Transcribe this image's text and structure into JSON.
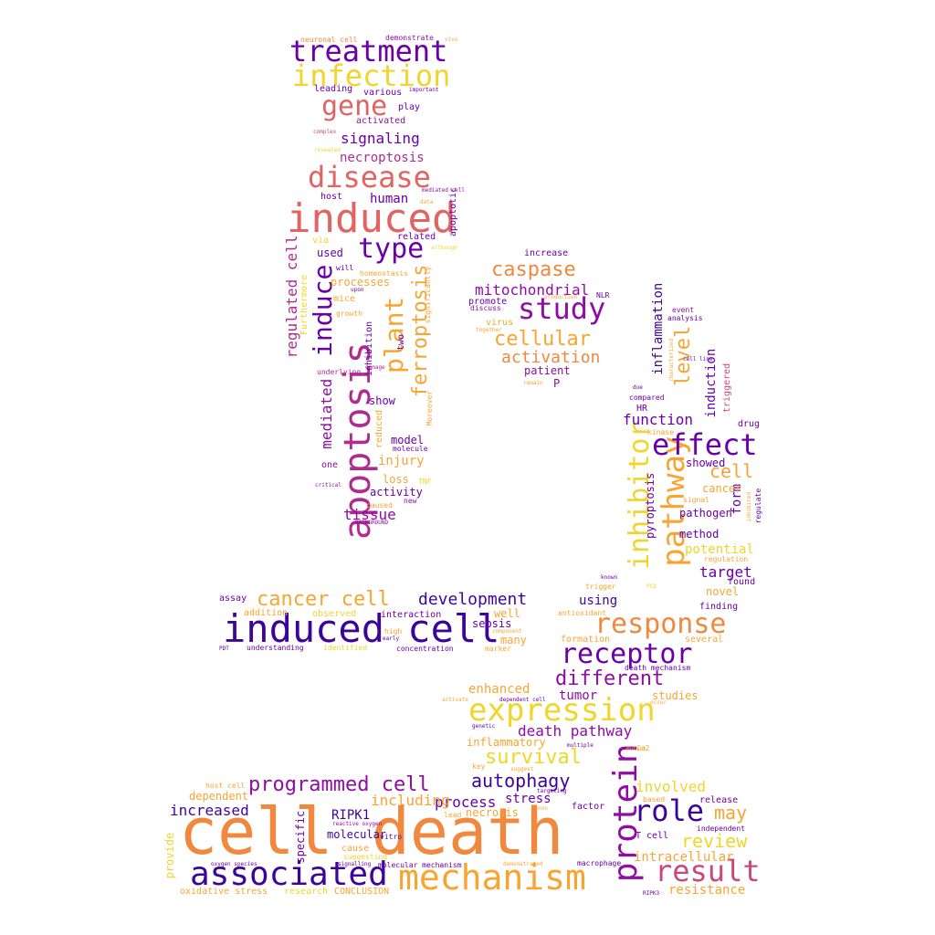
{
  "palette": {
    "indigo": "#3d049b",
    "violet": "#6a00a8",
    "purple": "#8f0da4",
    "magenta": "#b12a90",
    "rose": "#cc4778",
    "coral": "#e16462",
    "orange": "#f0883e",
    "amber": "#f9a431",
    "yellow": "#f0d52a"
  },
  "words": [
    {
      "text": "cell death",
      "color": "orange"
    },
    {
      "text": "induced cell",
      "color": "indigo"
    },
    {
      "text": "induced",
      "color": "coral"
    },
    {
      "text": "apoptosis",
      "color": "magenta"
    },
    {
      "text": "mechanism",
      "color": "amber"
    },
    {
      "text": "associated",
      "color": "indigo"
    },
    {
      "text": "protein",
      "color": "purple"
    },
    {
      "text": "pathway",
      "color": "amber"
    },
    {
      "text": "expression",
      "color": "yellow"
    },
    {
      "text": "response",
      "color": "orange"
    },
    {
      "text": "result",
      "color": "rose"
    },
    {
      "text": "receptor",
      "color": "violet"
    },
    {
      "text": "inhibitor",
      "color": "yellow"
    },
    {
      "text": "effect",
      "color": "violet"
    },
    {
      "text": "role",
      "color": "indigo"
    },
    {
      "text": "treatment",
      "color": "violet"
    },
    {
      "text": "infection",
      "color": "yellow"
    },
    {
      "text": "disease",
      "color": "coral"
    },
    {
      "text": "gene",
      "color": "coral"
    },
    {
      "text": "type",
      "color": "violet"
    },
    {
      "text": "study",
      "color": "purple"
    },
    {
      "text": "induce",
      "color": "violet"
    },
    {
      "text": "plant",
      "color": "amber"
    },
    {
      "text": "programmed cell",
      "color": "purple"
    },
    {
      "text": "cancer cell",
      "color": "amber"
    },
    {
      "text": "different",
      "color": "purple"
    },
    {
      "text": "ferroptosis",
      "color": "amber"
    },
    {
      "text": "level",
      "color": "amber"
    },
    {
      "text": "caspase",
      "color": "orange"
    },
    {
      "text": "cellular",
      "color": "amber"
    },
    {
      "text": "autophagy",
      "color": "indigo"
    },
    {
      "text": "survival",
      "color": "yellow"
    },
    {
      "text": "development",
      "color": "indigo"
    },
    {
      "text": "review",
      "color": "yellow"
    },
    {
      "text": "may",
      "color": "amber"
    },
    {
      "text": "cell",
      "color": "amber"
    },
    {
      "text": "activation",
      "color": "orange"
    },
    {
      "text": "signaling",
      "color": "violet"
    },
    {
      "text": "mitochondrial",
      "color": "purple"
    },
    {
      "text": "increased",
      "color": "indigo"
    },
    {
      "text": "death pathway",
      "color": "purple"
    },
    {
      "text": "enhanced",
      "color": "amber"
    },
    {
      "text": "involved",
      "color": "yellow"
    },
    {
      "text": "function",
      "color": "violet"
    },
    {
      "text": "intracellular",
      "color": "amber"
    },
    {
      "text": "resistance",
      "color": "amber"
    },
    {
      "text": "regulated cell",
      "color": "magenta"
    },
    {
      "text": "mediated",
      "color": "purple"
    },
    {
      "text": "necroptosis",
      "color": "magenta"
    },
    {
      "text": "tissue",
      "color": "purple"
    },
    {
      "text": "injury",
      "color": "amber"
    },
    {
      "text": "human",
      "color": "violet"
    },
    {
      "text": "target",
      "color": "violet"
    },
    {
      "text": "potential",
      "color": "yellow"
    },
    {
      "text": "process",
      "color": "violet"
    },
    {
      "text": "including",
      "color": "amber"
    },
    {
      "text": "stress",
      "color": "violet"
    },
    {
      "text": "inflammation",
      "color": "indigo"
    },
    {
      "text": "induction",
      "color": "violet"
    },
    {
      "text": "tumor",
      "color": "purple"
    },
    {
      "text": "form",
      "color": "violet"
    },
    {
      "text": "using",
      "color": "indigo"
    },
    {
      "text": "pyroptosis",
      "color": "violet"
    },
    {
      "text": "RIPK1",
      "color": "indigo"
    },
    {
      "text": "molecular",
      "color": "indigo"
    },
    {
      "text": "necrosis",
      "color": "amber"
    },
    {
      "text": "specific",
      "color": "violet"
    },
    {
      "text": "provide",
      "color": "yellow"
    },
    {
      "text": "dependent",
      "color": "amber"
    },
    {
      "text": "inflammatory",
      "color": "amber"
    },
    {
      "text": "studies",
      "color": "amber"
    },
    {
      "text": "sepsis",
      "color": "violet"
    },
    {
      "text": "well",
      "color": "amber"
    },
    {
      "text": "many",
      "color": "amber"
    },
    {
      "text": "novel",
      "color": "amber"
    },
    {
      "text": "method",
      "color": "violet"
    },
    {
      "text": "showed",
      "color": "violet"
    },
    {
      "text": "cancer",
      "color": "amber"
    },
    {
      "text": "pathogen",
      "color": "violet"
    },
    {
      "text": "patient",
      "color": "purple"
    },
    {
      "text": "P",
      "color": "purple"
    },
    {
      "text": "increase",
      "color": "violet"
    },
    {
      "text": "promote",
      "color": "violet"
    },
    {
      "text": "virus",
      "color": "amber"
    },
    {
      "text": "discuss",
      "color": "purple"
    },
    {
      "text": "NLR",
      "color": "violet"
    },
    {
      "text": "model",
      "color": "violet"
    },
    {
      "text": "loss",
      "color": "amber"
    },
    {
      "text": "activity",
      "color": "violet"
    },
    {
      "text": "show",
      "color": "violet"
    },
    {
      "text": "one",
      "color": "purple"
    },
    {
      "text": "processes",
      "color": "amber"
    },
    {
      "text": "used",
      "color": "violet"
    },
    {
      "text": "related",
      "color": "violet"
    },
    {
      "text": "host",
      "color": "violet"
    },
    {
      "text": "play",
      "color": "violet"
    },
    {
      "text": "activated",
      "color": "purple"
    },
    {
      "text": "various",
      "color": "violet"
    },
    {
      "text": "leading",
      "color": "violet"
    },
    {
      "text": "apoptotic",
      "color": "violet"
    },
    {
      "text": "mice",
      "color": "amber"
    },
    {
      "text": "via",
      "color": "yellow"
    },
    {
      "text": "will",
      "color": "violet"
    },
    {
      "text": "two",
      "color": "violet"
    },
    {
      "text": "inhibition",
      "color": "violet"
    },
    {
      "text": "reduced",
      "color": "amber"
    },
    {
      "text": "growth",
      "color": "amber"
    },
    {
      "text": "upon",
      "color": "violet"
    },
    {
      "text": "Furthermore",
      "color": "yellow"
    },
    {
      "text": "homeostasis",
      "color": "amber"
    },
    {
      "text": "significantly",
      "color": "amber"
    },
    {
      "text": "Moreover",
      "color": "amber"
    },
    {
      "text": "molecule",
      "color": "violet"
    },
    {
      "text": "new",
      "color": "purple"
    },
    {
      "text": "caused",
      "color": "amber"
    },
    {
      "text": "critical",
      "color": "purple"
    },
    {
      "text": "BACKGROUND",
      "color": "purple"
    },
    {
      "text": "TNF",
      "color": "yellow"
    },
    {
      "text": "underlying",
      "color": "magenta"
    },
    {
      "text": "damage",
      "color": "magenta"
    },
    {
      "text": "neuronal cell",
      "color": "orange"
    },
    {
      "text": "demonstrate",
      "color": "purple"
    },
    {
      "text": "vivo",
      "color": "amber"
    },
    {
      "text": "important",
      "color": "violet"
    },
    {
      "text": "complex",
      "color": "rose"
    },
    {
      "text": "revealed",
      "color": "yellow"
    },
    {
      "text": "mediated cell",
      "color": "purple"
    },
    {
      "text": "data",
      "color": "amber"
    },
    {
      "text": "although",
      "color": "yellow"
    },
    {
      "text": "production",
      "color": "amber"
    },
    {
      "text": "together",
      "color": "amber"
    },
    {
      "text": "remain",
      "color": "amber"
    },
    {
      "text": "event",
      "color": "purple"
    },
    {
      "text": "analysis",
      "color": "violet"
    },
    {
      "text": "characterized",
      "color": "amber"
    },
    {
      "text": "triggered",
      "color": "rose"
    },
    {
      "text": "cell line",
      "color": "violet"
    },
    {
      "text": "regulation",
      "color": "amber"
    },
    {
      "text": "due",
      "color": "violet"
    },
    {
      "text": "compared",
      "color": "violet"
    },
    {
      "text": "HR",
      "color": "violet"
    },
    {
      "text": "kinase",
      "color": "amber"
    },
    {
      "text": "drug",
      "color": "violet"
    },
    {
      "text": "signal",
      "color": "amber"
    },
    {
      "text": "inhibited",
      "color": "amber"
    },
    {
      "text": "regulate",
      "color": "violet"
    },
    {
      "text": "found",
      "color": "violet"
    },
    {
      "text": "finding",
      "color": "violet"
    },
    {
      "text": "several",
      "color": "amber"
    },
    {
      "text": "known",
      "color": "violet"
    },
    {
      "text": "trigger",
      "color": "amber"
    },
    {
      "text": "PCD",
      "color": "yellow"
    },
    {
      "text": "antioxidant",
      "color": "amber"
    },
    {
      "text": "formation",
      "color": "amber"
    },
    {
      "text": "death mechanism",
      "color": "violet"
    },
    {
      "text": "assay",
      "color": "violet"
    },
    {
      "text": "addition",
      "color": "amber"
    },
    {
      "text": "observed",
      "color": "yellow"
    },
    {
      "text": "interaction",
      "color": "violet"
    },
    {
      "text": "high",
      "color": "amber"
    },
    {
      "text": "early",
      "color": "violet"
    },
    {
      "text": "component",
      "color": "amber"
    },
    {
      "text": "marker",
      "color": "amber"
    },
    {
      "text": "PDT",
      "color": "violet"
    },
    {
      "text": "understanding",
      "color": "violet"
    },
    {
      "text": "identified",
      "color": "yellow"
    },
    {
      "text": "concentration",
      "color": "violet"
    },
    {
      "text": "activate",
      "color": "amber"
    },
    {
      "text": "dependent cell",
      "color": "violet"
    },
    {
      "text": "occur",
      "color": "amber"
    },
    {
      "text": "genetic",
      "color": "violet"
    },
    {
      "text": "key",
      "color": "amber"
    },
    {
      "text": "suggest",
      "color": "amber"
    },
    {
      "text": "multiple",
      "color": "violet"
    },
    {
      "text": "mutant",
      "color": "amber"
    },
    {
      "text": "Ca2",
      "color": "amber"
    },
    {
      "text": "host cell",
      "color": "amber"
    },
    {
      "text": "targeting",
      "color": "violet"
    },
    {
      "text": "based",
      "color": "amber"
    },
    {
      "text": "lead",
      "color": "amber"
    },
    {
      "text": "non",
      "color": "amber"
    },
    {
      "text": "factor",
      "color": "violet"
    },
    {
      "text": "release",
      "color": "violet"
    },
    {
      "text": "independent",
      "color": "violet"
    },
    {
      "text": "T cell",
      "color": "violet"
    },
    {
      "text": "reactive oxygen",
      "color": "purple"
    },
    {
      "text": "vitro",
      "color": "violet"
    },
    {
      "text": "cause",
      "color": "amber"
    },
    {
      "text": "suggesting",
      "color": "yellow"
    },
    {
      "text": "oxygen species",
      "color": "violet"
    },
    {
      "text": "signalling",
      "color": "violet"
    },
    {
      "text": "molecular mechanism",
      "color": "violet"
    },
    {
      "text": "demonstrated",
      "color": "amber"
    },
    {
      "text": "macrophage",
      "color": "violet"
    },
    {
      "text": "oxidative stress",
      "color": "amber"
    },
    {
      "text": "research",
      "color": "yellow"
    },
    {
      "text": "CONCLUSION",
      "color": "amber"
    },
    {
      "text": "RIPK3",
      "color": "violet"
    }
  ]
}
